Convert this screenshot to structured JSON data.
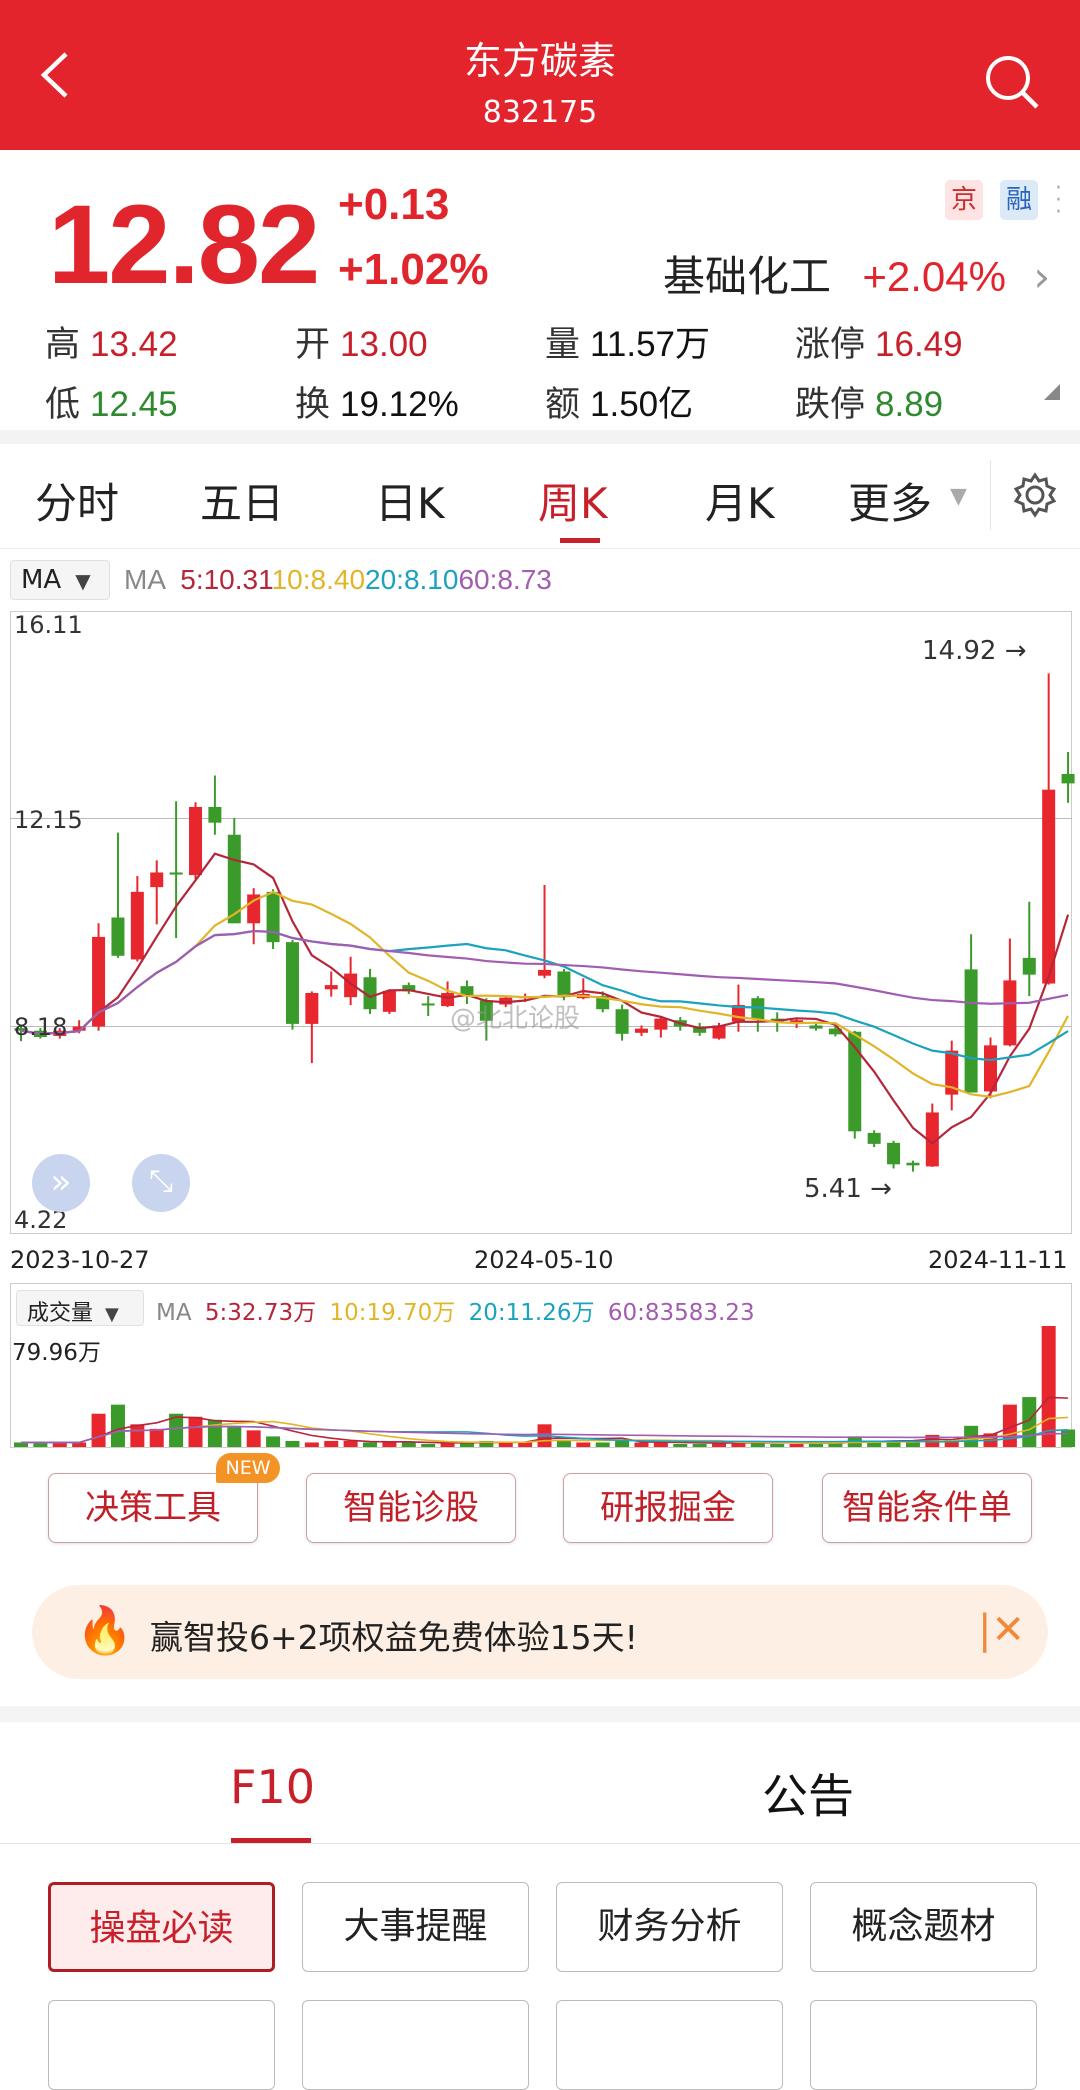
{
  "header": {
    "title": "东方碳素",
    "code": "832175"
  },
  "quote": {
    "price": "12.82",
    "change": "+0.13",
    "change_pct": "+1.02%",
    "tags": [
      "京",
      "融"
    ],
    "sector": "基础化工",
    "sector_change": "+2.04%",
    "stats": [
      {
        "k": "高",
        "v": "13.42",
        "c": "red"
      },
      {
        "k": "开",
        "v": "13.00",
        "c": "red"
      },
      {
        "k": "量",
        "v": "11.57万",
        "c": "black"
      },
      {
        "k": "涨停",
        "v": "16.49",
        "c": "red"
      },
      {
        "k": "低",
        "v": "12.45",
        "c": "green"
      },
      {
        "k": "换",
        "v": "19.12%",
        "c": "black"
      },
      {
        "k": "额",
        "v": "1.50亿",
        "c": "black"
      },
      {
        "k": "跌停",
        "v": "8.89",
        "c": "green"
      }
    ]
  },
  "tabs": [
    "分时",
    "五日",
    "日K",
    "周K",
    "月K",
    "更多"
  ],
  "active_tab": "周K",
  "colors": {
    "up": "#e8262d",
    "down": "#3a9a2a",
    "ma5": "#b5263a",
    "ma10": "#e2b528",
    "ma20": "#1ba3bd",
    "ma60": "#a25cb0",
    "brand": "#e3242d"
  },
  "ma_bar": {
    "selector": "MA",
    "label": "MA",
    "ma5": "5:10.31",
    "ma10": "10:8.40",
    "ma20": "20:8.10",
    "ma60": "60:8.73"
  },
  "vol_bar": {
    "selector": "成交量",
    "label": "MA",
    "ma5": "5:32.73万",
    "ma10": "10:19.70万",
    "ma20": "20:11.26万",
    "ma60": "60:83583.23",
    "max_label": "79.96万"
  },
  "watermark": "@北北论股",
  "chart_data": {
    "type": "candlestick",
    "y_ticks": [
      "16.11",
      "12.15",
      "8.18",
      "4.22"
    ],
    "ylim": [
      4.22,
      16.11
    ],
    "x_ticks": [
      "2023-10-27",
      "2024-05-10",
      "2024-11-11"
    ],
    "high_label": "14.92 →",
    "low_label": "5.41 →",
    "ohlc": [
      [
        8.15,
        8.2,
        7.9,
        8.1
      ],
      [
        8.1,
        8.15,
        7.95,
        7.98
      ],
      [
        8.0,
        8.15,
        7.95,
        8.1
      ],
      [
        8.1,
        8.3,
        8.05,
        8.18
      ],
      [
        8.18,
        10.15,
        8.1,
        9.89
      ],
      [
        10.26,
        11.88,
        9.49,
        9.53
      ],
      [
        9.46,
        11.05,
        9.42,
        10.75
      ],
      [
        10.84,
        11.35,
        10.13,
        11.12
      ],
      [
        11.12,
        12.48,
        9.87,
        11.08
      ],
      [
        11.07,
        12.46,
        10.99,
        12.37
      ],
      [
        12.37,
        12.97,
        11.84,
        12.07
      ],
      [
        11.84,
        12.16,
        10.15,
        10.15
      ],
      [
        10.15,
        10.82,
        9.75,
        10.7
      ],
      [
        10.75,
        10.8,
        9.66,
        9.79
      ],
      [
        9.79,
        9.83,
        8.12,
        8.23
      ],
      [
        8.23,
        8.85,
        7.48,
        8.82
      ],
      [
        8.89,
        9.23,
        8.75,
        8.97
      ],
      [
        8.74,
        9.51,
        8.59,
        9.19
      ],
      [
        9.12,
        9.28,
        8.42,
        8.51
      ],
      [
        8.46,
        8.89,
        8.42,
        8.86
      ],
      [
        8.97,
        9.02,
        8.8,
        8.85
      ],
      [
        8.62,
        8.76,
        8.38,
        8.6
      ],
      [
        8.57,
        9.04,
        8.55,
        8.82
      ],
      [
        8.95,
        9.06,
        8.61,
        8.78
      ],
      [
        8.68,
        8.72,
        7.91,
        8.29
      ],
      [
        8.6,
        8.76,
        8.55,
        8.73
      ],
      [
        8.72,
        8.81,
        8.65,
        8.76
      ],
      [
        9.15,
        10.88,
        9.1,
        9.26
      ],
      [
        9.23,
        9.28,
        8.68,
        8.74
      ],
      [
        8.72,
        9.1,
        8.7,
        8.8
      ],
      [
        8.76,
        8.85,
        8.45,
        8.51
      ],
      [
        8.51,
        8.6,
        7.91,
        8.04
      ],
      [
        8.06,
        8.2,
        8.0,
        8.14
      ],
      [
        8.12,
        8.36,
        7.97,
        8.33
      ],
      [
        8.3,
        8.36,
        8.1,
        8.18
      ],
      [
        8.18,
        8.25,
        8.0,
        8.06
      ],
      [
        7.95,
        8.25,
        7.93,
        8.2
      ],
      [
        8.27,
        8.98,
        8.08,
        8.59
      ],
      [
        8.72,
        8.76,
        8.08,
        8.32
      ],
      [
        8.33,
        8.45,
        8.08,
        8.27
      ],
      [
        8.25,
        8.35,
        8.15,
        8.3
      ],
      [
        8.2,
        8.25,
        8.1,
        8.14
      ],
      [
        8.14,
        8.2,
        7.99,
        8.03
      ],
      [
        8.08,
        8.1,
        6.04,
        6.18
      ],
      [
        6.15,
        6.2,
        5.88,
        5.94
      ],
      [
        5.96,
        6.0,
        5.47,
        5.55
      ],
      [
        5.58,
        5.62,
        5.41,
        5.53
      ],
      [
        5.51,
        6.71,
        5.5,
        6.54
      ],
      [
        6.88,
        7.91,
        6.58,
        7.72
      ],
      [
        9.27,
        9.94,
        6.92,
        6.92
      ],
      [
        6.94,
        7.97,
        6.81,
        7.82
      ],
      [
        7.82,
        9.86,
        7.8,
        9.06
      ],
      [
        9.49,
        10.56,
        8.76,
        9.17
      ],
      [
        9.0,
        14.92,
        8.98,
        12.7
      ],
      [
        13.0,
        13.42,
        12.45,
        12.82
      ]
    ],
    "volume_wan": [
      3,
      3,
      3,
      3,
      22,
      28,
      15,
      12,
      22,
      20,
      18,
      13,
      11,
      7,
      4,
      3,
      4,
      4,
      3,
      3,
      3,
      2,
      3,
      3,
      4,
      3,
      3,
      15,
      4,
      3,
      3,
      4,
      3,
      3,
      2,
      2,
      3,
      4,
      3,
      2,
      2,
      2,
      3,
      7,
      4,
      4,
      3,
      8,
      5,
      14,
      9,
      28,
      33,
      80,
      11.57
    ]
  },
  "tools": [
    "决策工具",
    "智能诊股",
    "研报掘金",
    "智能条件单"
  ],
  "new_badge": "NEW",
  "banner": "赢智投6+2项权益免费体验15天!",
  "bottom_tabs": [
    "F10",
    "公告"
  ],
  "f10_buttons": [
    "操盘必读",
    "大事提醒",
    "财务分析",
    "概念题材"
  ]
}
